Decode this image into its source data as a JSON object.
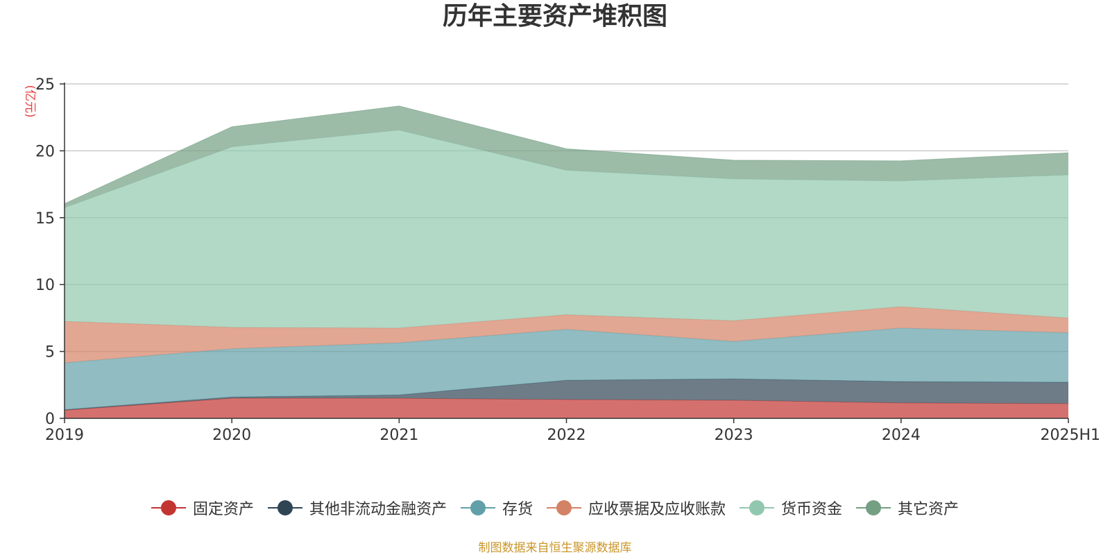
{
  "chart_data": {
    "type": "area",
    "stacked": true,
    "title": "历年主要资产堆积图",
    "unit_label": "(亿元)",
    "categories": [
      "2019",
      "2020",
      "2021",
      "2022",
      "2023",
      "2024",
      "2025H1"
    ],
    "ylim": [
      0,
      25
    ],
    "yticks": [
      "0",
      "5",
      "10",
      "15",
      "20",
      "25"
    ],
    "grid": true,
    "legend_position": "bottom",
    "series": [
      {
        "name": "固定资产",
        "color": "#c23531",
        "values": [
          0.6,
          1.5,
          1.5,
          1.4,
          1.35,
          1.15,
          1.1
        ]
      },
      {
        "name": "其他非流动金融资产",
        "color": "#2f4554",
        "values": [
          0.05,
          0.1,
          0.25,
          1.45,
          1.6,
          1.6,
          1.6
        ]
      },
      {
        "name": "存货",
        "color": "#61a0a8",
        "values": [
          3.5,
          3.6,
          3.9,
          3.8,
          2.8,
          4.0,
          3.7
        ]
      },
      {
        "name": "应收票据及应收账款",
        "color": "#d48265",
        "values": [
          3.1,
          1.6,
          1.1,
          1.1,
          1.55,
          1.6,
          1.1
        ]
      },
      {
        "name": "货币资金",
        "color": "#91c7ae",
        "values": [
          8.5,
          13.5,
          14.8,
          10.8,
          10.6,
          9.4,
          10.7
        ]
      },
      {
        "name": "其它资产",
        "color": "#749f83",
        "values": [
          0.3,
          1.5,
          1.8,
          1.6,
          1.4,
          1.5,
          1.65
        ]
      }
    ]
  },
  "source_note": "制图数据来自恒生聚源数据库"
}
